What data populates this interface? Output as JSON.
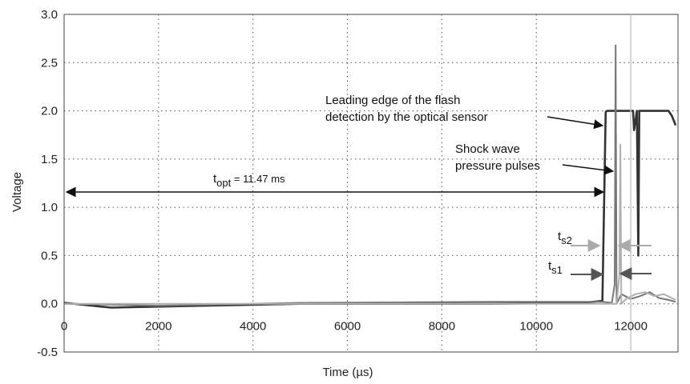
{
  "chart_data": {
    "type": "line",
    "xlabel": "Time (µs)",
    "ylabel": "Voltage",
    "xlim": [
      0,
      13000
    ],
    "ylim": [
      -0.5,
      3.0
    ],
    "xticks": [
      0,
      2000,
      4000,
      6000,
      8000,
      10000,
      12000
    ],
    "xtick_labels": [
      "0",
      "2000",
      "4000",
      "6000",
      "8000",
      "10000",
      "12000"
    ],
    "yticks": [
      -0.5,
      0.0,
      0.5,
      1.0,
      1.5,
      2.0,
      2.5,
      3.0
    ],
    "ytick_labels": [
      "-0.5",
      "0.0",
      "0.5",
      "1.0",
      "1.5",
      "2.0",
      "2.5",
      "3.0"
    ],
    "grid": true,
    "reference_line_x": 12000,
    "series": [
      {
        "color": "#333333",
        "points": [
          [
            0,
            0.01
          ],
          [
            1000,
            -0.04
          ],
          [
            3000,
            -0.02
          ],
          [
            5000,
            0.0
          ],
          [
            9000,
            0.0
          ],
          [
            11000,
            0.01
          ],
          [
            11400,
            0.03
          ],
          [
            11470,
            1.99
          ],
          [
            11500,
            2.0
          ],
          [
            12050,
            2.0
          ],
          [
            12070,
            1.8
          ],
          [
            12100,
            1.9
          ],
          [
            12130,
            2.0
          ],
          [
            12160,
            0.5
          ],
          [
            12180,
            2.0
          ],
          [
            12800,
            2.0
          ],
          [
            12870,
            1.95
          ],
          [
            12950,
            1.85
          ]
        ]
      },
      {
        "color": "#777777",
        "points": [
          [
            0,
            0.0
          ],
          [
            2000,
            -0.02
          ],
          [
            5000,
            0.01
          ],
          [
            9000,
            0.02
          ],
          [
            11400,
            0.02
          ],
          [
            11600,
            0.01
          ],
          [
            11660,
            0.2
          ],
          [
            11680,
            2.68
          ],
          [
            11700,
            0.0
          ],
          [
            11800,
            0.1
          ],
          [
            12000,
            0.05
          ],
          [
            12200,
            0.08
          ],
          [
            12400,
            0.12
          ],
          [
            12600,
            0.06
          ],
          [
            12800,
            0.04
          ],
          [
            12950,
            0.02
          ]
        ]
      },
      {
        "color": "#b0b0b0",
        "points": [
          [
            0,
            0.0
          ],
          [
            3000,
            0.0
          ],
          [
            8000,
            0.0
          ],
          [
            11400,
            0.0
          ],
          [
            11700,
            0.0
          ],
          [
            11760,
            0.3
          ],
          [
            11780,
            1.65
          ],
          [
            11800,
            0.0
          ],
          [
            11900,
            0.05
          ],
          [
            12100,
            0.1
          ],
          [
            12300,
            0.12
          ],
          [
            12500,
            0.08
          ],
          [
            12700,
            0.1
          ],
          [
            12950,
            0.04
          ]
        ]
      }
    ],
    "annotations": {
      "topt_main": "t",
      "topt_sub": "opt",
      "topt_value": " = 11.47 ms",
      "flash_line1": "Leading edge of the flash",
      "flash_line2": "detection by the optical sensor",
      "shock_line1": "Shock wave",
      "shock_line2": "pressure pulses",
      "ts2_main": "t",
      "ts2_sub": "s2",
      "ts1_main": "t",
      "ts1_sub": "s1"
    }
  }
}
